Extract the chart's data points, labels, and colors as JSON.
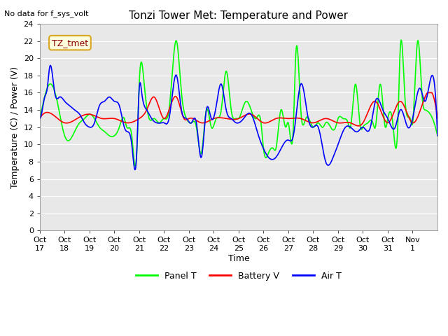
{
  "title": "Tonzi Tower Met: Temperature and Power",
  "top_left_text": "No data for f_sys_volt",
  "legend_label": "TZ_tmet",
  "xlabel": "Time",
  "ylabel": "Temperature (C) / Power (V)",
  "ylim": [
    0,
    24
  ],
  "yticks": [
    0,
    2,
    4,
    6,
    8,
    10,
    12,
    14,
    16,
    18,
    20,
    22,
    24
  ],
  "xtick_labels": [
    "Oct 17",
    "Oct 18",
    "Oct 19",
    "Oct 20",
    "Oct 21",
    "Oct 22",
    "Oct 23",
    "Oct 24",
    "Oct 25",
    "Oct 26",
    "Oct 27",
    "Oct 28",
    "Oct 29",
    "Oct 30",
    "Oct 31",
    "Nov 1"
  ],
  "bg_color": "#e8e8e8",
  "grid_color": "#ffffff",
  "panel_t_color": "#00ff00",
  "battery_v_color": "#ff0000",
  "air_t_color": "#0000ff",
  "line_width": 1.2,
  "legend_entries": [
    "Panel T",
    "Battery V",
    "Air T"
  ],
  "legend_colors": [
    "#00ff00",
    "#ff0000",
    "#0000ff"
  ]
}
